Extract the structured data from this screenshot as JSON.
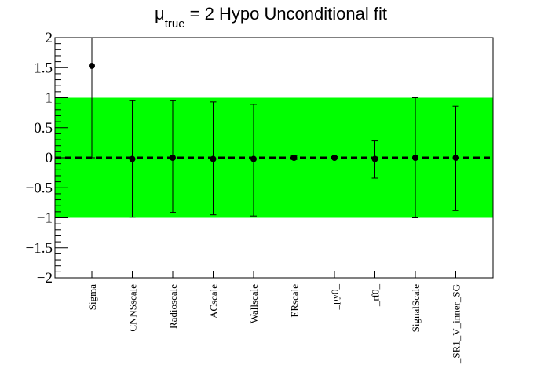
{
  "chart_data": {
    "type": "scatter",
    "title": {
      "mu_symbol": "μ",
      "mu_subscript": "true",
      "rest": " = 2 Hypo Unconditional fit"
    },
    "xlabel": "",
    "ylabel": "",
    "ylim": [
      -2,
      2
    ],
    "yticks": [
      {
        "value": 2,
        "label": "2"
      },
      {
        "value": 1.5,
        "label": "1.5"
      },
      {
        "value": 1,
        "label": "1"
      },
      {
        "value": 0.5,
        "label": "0.5"
      },
      {
        "value": 0,
        "label": "0"
      },
      {
        "value": -0.5,
        "label": "−0.5"
      },
      {
        "value": -1,
        "label": "−1"
      },
      {
        "value": -1.5,
        "label": "−1.5"
      },
      {
        "value": -2,
        "label": "−2"
      }
    ],
    "band": {
      "low": -1,
      "high": 1,
      "color": "#00ff00"
    },
    "reference_line": {
      "value": 0,
      "style": "dashed"
    },
    "categories": [
      "Sigma",
      "CNNSscale",
      "Radioscale",
      "ACscale",
      "Wallscale",
      "ERscale",
      "_py0_",
      "_rf0_",
      "SignalScale",
      "_SR1_V_inner_SG"
    ],
    "values": [
      1.53,
      -0.02,
      0.0,
      -0.02,
      -0.02,
      0.0,
      0.0,
      -0.02,
      0.0,
      0.0
    ],
    "err_low": [
      1.53,
      0.97,
      0.91,
      0.93,
      0.95,
      0.03,
      0.02,
      0.32,
      1.0,
      0.88
    ],
    "err_high": [
      0.47,
      0.97,
      0.95,
      0.95,
      0.91,
      0.03,
      0.02,
      0.3,
      1.0,
      0.86
    ],
    "grid": false,
    "colors": {
      "points": "#000000",
      "band": "#00ff00"
    }
  }
}
